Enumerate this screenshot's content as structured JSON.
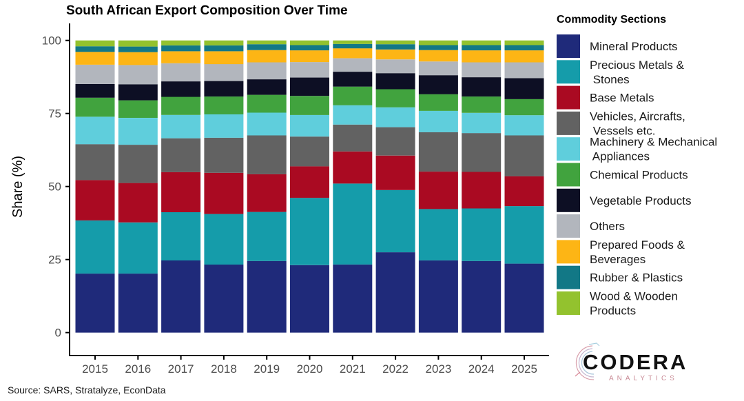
{
  "chart_data": {
    "type": "bar",
    "stacked": true,
    "title": "South African Export Composition Over Time",
    "xlabel": "",
    "ylabel": "Share (%)",
    "ylim": [
      0,
      100
    ],
    "yticks": [
      "0",
      "25",
      "50",
      "75",
      "100"
    ],
    "categories": [
      "2015",
      "2016",
      "2017",
      "2018",
      "2019",
      "2020",
      "2021",
      "2022",
      "2023",
      "2024",
      "2025"
    ],
    "legend_title": "Commodity Sections",
    "legend_position": "right",
    "grid": false,
    "series": [
      {
        "name": "Mineral Products",
        "label_lines": [
          "Mineral Products"
        ],
        "color": "#1F2A7A",
        "values": [
          20.2,
          20.2,
          24.7,
          23.3,
          24.5,
          23.1,
          23.3,
          27.5,
          24.7,
          24.5,
          23.6
        ]
      },
      {
        "name": "Precious Metals & Stones",
        "label_lines": [
          "Precious Metals &",
          " Stones"
        ],
        "color": "#159CAA",
        "values": [
          18.2,
          17.5,
          16.5,
          17.3,
          16.8,
          23.0,
          27.7,
          21.3,
          17.6,
          18.0,
          19.7
        ]
      },
      {
        "name": "Base Metals",
        "label_lines": [
          "Base Metals"
        ],
        "color": "#AA0A22",
        "values": [
          13.8,
          13.5,
          13.7,
          14.1,
          12.9,
          10.8,
          11.0,
          11.8,
          12.8,
          12.5,
          10.2
        ]
      },
      {
        "name": "Vehicles, Aircrafts, Vessels etc.",
        "label_lines": [
          "Vehicles, Aircrafts,",
          " Vessels etc."
        ],
        "color": "#626262",
        "values": [
          12.3,
          13.1,
          11.6,
          12.0,
          13.3,
          10.2,
          9.2,
          9.7,
          13.5,
          13.3,
          14.0
        ]
      },
      {
        "name": "Machinery & Mechanical Appliances",
        "label_lines": [
          "Machinery & Mechanical",
          " Appliances"
        ],
        "color": "#5FCEDC",
        "values": [
          9.4,
          9.2,
          8.0,
          8.0,
          7.8,
          7.4,
          6.6,
          6.8,
          7.3,
          6.9,
          6.9
        ]
      },
      {
        "name": "Chemical Products",
        "label_lines": [
          "Chemical Products"
        ],
        "color": "#41A33E",
        "values": [
          6.5,
          6.0,
          6.2,
          6.1,
          6.1,
          6.5,
          6.4,
          6.2,
          5.7,
          5.6,
          5.5
        ]
      },
      {
        "name": "Vegetable Products",
        "label_lines": [
          "Vegetable Products"
        ],
        "color": "#0D0F24",
        "values": [
          4.7,
          5.5,
          5.3,
          5.3,
          5.3,
          6.3,
          5.1,
          5.5,
          6.5,
          6.6,
          7.2
        ]
      },
      {
        "name": "Others",
        "label_lines": [
          "Others"
        ],
        "color": "#B2B6BD",
        "values": [
          6.6,
          6.6,
          6.2,
          5.8,
          5.8,
          5.3,
          4.6,
          4.7,
          4.7,
          5.1,
          5.4
        ]
      },
      {
        "name": "Prepared Foods & Beverages",
        "label_lines": [
          "Prepared Foods &",
          "Beverages"
        ],
        "color": "#FDB515",
        "values": [
          4.4,
          4.4,
          4.1,
          4.4,
          4.2,
          4.0,
          3.4,
          3.4,
          3.9,
          4.1,
          4.1
        ]
      },
      {
        "name": "Rubber & Plastics",
        "label_lines": [
          "Rubber & Plastics"
        ],
        "color": "#127886",
        "values": [
          1.9,
          1.9,
          2.0,
          2.0,
          2.0,
          1.8,
          1.5,
          1.8,
          1.7,
          1.8,
          1.8
        ]
      },
      {
        "name": "Wood & Wooden Products",
        "label_lines": [
          "Wood & Wooden",
          "Products"
        ],
        "color": "#93C22E",
        "values": [
          2.0,
          2.1,
          1.7,
          1.7,
          1.3,
          1.6,
          1.2,
          1.3,
          1.6,
          1.6,
          1.6
        ]
      }
    ]
  },
  "caption": "Source: SARS, Stratalyze, EconData",
  "logo": {
    "name": "CODERA",
    "subtitle": "ANALYTICS"
  }
}
